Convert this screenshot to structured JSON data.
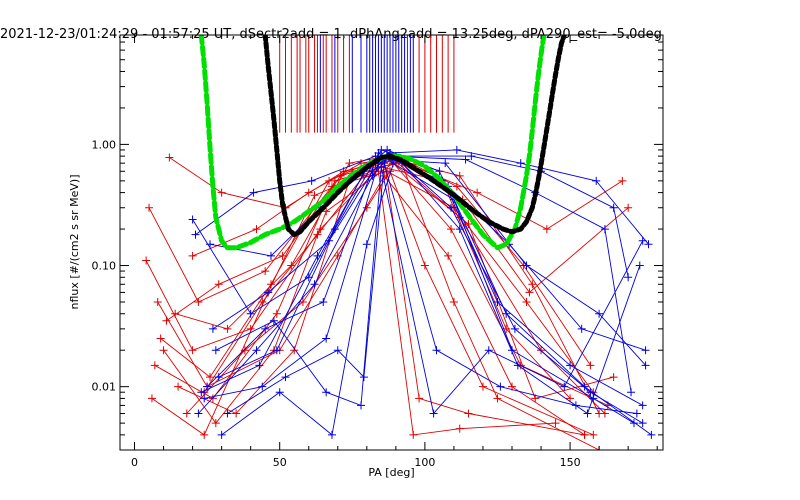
{
  "chart_data": {
    "type": "line",
    "title": "2021-12-23/01:24:29 - 01:57:25 UT, dSectr2add = 1, dPhAng2add = 13.25deg, dPA290_est= -5.0deg",
    "xlabel": "PA [deg]",
    "ylabel": "nflux [#/(cm2 s sr MeV)]",
    "xlim": [
      -5,
      182
    ],
    "ylim": [
      0.003,
      8
    ],
    "y_scale": "log",
    "grid": false,
    "x_ticks": [
      0,
      50,
      100,
      150
    ],
    "x_tick_labels": [
      "0",
      "50",
      "100",
      "150"
    ],
    "y_ticks": [
      0.01,
      0.1,
      1.0
    ],
    "y_tick_labels": [
      "0.01",
      "0.10",
      "1.00"
    ],
    "colors": {
      "red": "#e00000",
      "blue": "#0000e0",
      "green": "#00e000",
      "black": "#000000"
    },
    "series": [
      {
        "color": "red",
        "x": [
          5,
          22,
          45,
          68,
          87,
          110,
          135,
          158
        ],
        "y": [
          0.3,
          0.05,
          0.09,
          0.45,
          0.6,
          0.3,
          0.05,
          0.009
        ]
      },
      {
        "color": "red",
        "x": [
          4,
          20,
          40,
          64,
          88,
          112,
          140,
          162
        ],
        "y": [
          0.11,
          0.02,
          0.03,
          0.2,
          0.8,
          0.25,
          0.02,
          0.006
        ]
      },
      {
        "color": "red",
        "x": [
          8,
          25,
          50,
          70,
          86,
          108,
          130,
          155
        ],
        "y": [
          0.05,
          0.01,
          0.02,
          0.12,
          0.55,
          0.12,
          0.01,
          0.004
        ]
      },
      {
        "color": "red",
        "x": [
          10,
          28,
          48,
          66,
          89,
          115,
          138,
          165
        ],
        "y": [
          0.02,
          0.005,
          0.02,
          0.28,
          0.7,
          0.22,
          0.008,
          0.012
        ]
      },
      {
        "color": "red",
        "x": [
          12,
          30,
          52,
          72,
          90,
          118,
          142,
          168
        ],
        "y": [
          0.78,
          0.4,
          0.3,
          0.6,
          0.75,
          0.4,
          0.2,
          0.5
        ]
      },
      {
        "color": "red",
        "x": [
          6,
          24,
          46,
          62,
          85,
          106,
          128,
          150
        ],
        "y": [
          0.008,
          0.004,
          0.06,
          0.38,
          0.65,
          0.5,
          0.03,
          0.008
        ]
      },
      {
        "color": "red",
        "x": [
          15,
          35,
          55,
          75,
          92,
          110,
          125,
          160
        ],
        "y": [
          0.01,
          0.006,
          0.02,
          0.6,
          0.7,
          0.05,
          0.008,
          0.003
        ]
      },
      {
        "color": "red",
        "x": [
          18,
          38,
          58,
          80,
          88,
          100,
          120,
          158
        ],
        "y": [
          0.006,
          0.02,
          0.05,
          0.3,
          0.6,
          0.1,
          0.01,
          0.004
        ]
      },
      {
        "color": "red",
        "x": [
          7,
          27,
          49,
          69,
          91,
          113,
          136,
          170
        ],
        "y": [
          0.015,
          0.008,
          0.04,
          0.5,
          0.72,
          0.35,
          0.06,
          0.3
        ]
      },
      {
        "color": "red",
        "x": [
          14,
          32,
          54,
          74,
          87,
          109,
          133,
          163
        ],
        "y": [
          0.04,
          0.03,
          0.1,
          0.7,
          0.8,
          0.2,
          0.015,
          0.007
        ]
      },
      {
        "color": "red",
        "x": [
          20,
          42,
          60,
          78,
          86,
          98,
          115,
          155
        ],
        "y": [
          0.12,
          0.2,
          0.4,
          0.7,
          0.75,
          0.008,
          0.006,
          0.004
        ]
      },
      {
        "color": "red",
        "x": [
          24,
          44,
          63,
          79,
          84,
          96,
          112,
          145
        ],
        "y": [
          0.009,
          0.05,
          0.18,
          0.55,
          0.6,
          0.004,
          0.0045,
          0.005
        ]
      },
      {
        "color": "red",
        "x": [
          9,
          26,
          47,
          67,
          88,
          111,
          134,
          157
        ],
        "y": [
          0.025,
          0.012,
          0.07,
          0.5,
          0.85,
          0.45,
          0.1,
          0.015
        ]
      },
      {
        "color": "red",
        "x": [
          11,
          29,
          51,
          71,
          90,
          112,
          137,
          160
        ],
        "y": [
          0.035,
          0.07,
          0.12,
          0.55,
          0.75,
          0.55,
          0.07,
          0.006
        ]
      },
      {
        "color": "blue",
        "x": [
          20,
          40,
          60,
          80,
          87,
          105,
          125,
          150,
          175
        ],
        "y": [
          0.24,
          0.04,
          0.08,
          0.65,
          0.9,
          0.6,
          0.05,
          0.015,
          0.007
        ]
      },
      {
        "color": "blue",
        "x": [
          22,
          42,
          62,
          82,
          88,
          108,
          128,
          155,
          178
        ],
        "y": [
          0.006,
          0.02,
          0.07,
          0.55,
          0.8,
          0.45,
          0.04,
          0.01,
          0.004
        ]
      },
      {
        "color": "blue",
        "x": [
          25,
          45,
          65,
          84,
          89,
          110,
          130,
          158,
          172
        ],
        "y": [
          0.01,
          0.03,
          0.05,
          0.85,
          0.7,
          0.35,
          0.02,
          0.008,
          0.005
        ]
      },
      {
        "color": "blue",
        "x": [
          26,
          47,
          64,
          83,
          86,
          107,
          135,
          160,
          176
        ],
        "y": [
          0.15,
          0.12,
          0.3,
          0.7,
          0.75,
          0.7,
          0.1,
          0.04,
          0.015
        ]
      },
      {
        "color": "blue",
        "x": [
          28,
          48,
          66,
          78,
          85,
          103,
          122,
          148,
          175
        ],
        "y": [
          0.02,
          0.035,
          0.009,
          0.007,
          0.65,
          0.006,
          0.02,
          0.01,
          0.16
        ]
      },
      {
        "color": "blue",
        "x": [
          30,
          50,
          68,
          80,
          90,
          112,
          132,
          156,
          174
        ],
        "y": [
          0.004,
          0.009,
          0.004,
          0.15,
          0.8,
          0.2,
          0.015,
          0.006,
          0.1
        ]
      },
      {
        "color": "blue",
        "x": [
          23,
          43,
          63,
          81,
          88,
          111,
          133,
          159,
          177
        ],
        "y": [
          0.009,
          0.015,
          0.12,
          0.7,
          0.85,
          0.9,
          0.7,
          0.5,
          0.15
        ]
      },
      {
        "color": "blue",
        "x": [
          27,
          46,
          67,
          82,
          87,
          114,
          138,
          162,
          171
        ],
        "y": [
          0.03,
          0.06,
          0.16,
          0.6,
          0.8,
          0.75,
          0.4,
          0.2,
          0.009
        ]
      },
      {
        "color": "blue",
        "x": [
          32,
          52,
          70,
          79,
          86,
          104,
          126,
          152,
          173
        ],
        "y": [
          0.006,
          0.012,
          0.02,
          0.012,
          0.7,
          0.02,
          0.01,
          0.007,
          0.006
        ]
      },
      {
        "color": "blue",
        "x": [
          21,
          41,
          61,
          83,
          89,
          106,
          129,
          154,
          176
        ],
        "y": [
          0.18,
          0.4,
          0.5,
          0.8,
          0.75,
          0.5,
          0.15,
          0.03,
          0.02
        ]
      },
      {
        "color": "blue",
        "x": [
          24,
          44,
          66,
          84,
          90,
          116,
          140,
          165,
          170
        ],
        "y": [
          0.008,
          0.01,
          0.025,
          0.7,
          0.8,
          0.8,
          0.6,
          0.3,
          0.08
        ]
      },
      {
        "color": "blue",
        "x": [
          29,
          49,
          69,
          85,
          88,
          109,
          131,
          157,
          175
        ],
        "y": [
          0.012,
          0.02,
          0.2,
          0.9,
          0.85,
          0.3,
          0.03,
          0.009,
          0.005
        ]
      }
    ],
    "model_curves": [
      {
        "name": "",
        "color": "green",
        "dash": "8,4",
        "x": [
          23,
          24,
          25,
          26,
          27,
          28,
          30,
          32,
          35,
          40,
          45,
          50,
          55,
          60,
          65,
          70,
          75,
          80,
          85,
          88,
          91,
          95,
          100,
          105,
          110,
          115,
          120,
          125,
          128,
          131,
          133,
          135,
          136,
          137,
          138,
          139,
          140,
          141
        ],
        "y": [
          8,
          4.6,
          2.2,
          0.95,
          0.45,
          0.25,
          0.16,
          0.14,
          0.14,
          0.155,
          0.18,
          0.2,
          0.23,
          0.28,
          0.34,
          0.45,
          0.56,
          0.68,
          0.77,
          0.8,
          0.8,
          0.76,
          0.66,
          0.52,
          0.38,
          0.26,
          0.18,
          0.14,
          0.15,
          0.2,
          0.3,
          0.55,
          0.8,
          1.3,
          2.2,
          3.6,
          5.5,
          8
        ]
      },
      {
        "name": "",
        "color": "black",
        "dash": "5,3",
        "x": [
          45,
          46,
          47,
          48,
          49,
          50,
          51,
          52,
          53,
          55,
          57,
          60,
          65,
          70,
          75,
          80,
          85,
          88,
          92,
          97,
          102,
          107,
          112,
          117,
          122,
          127,
          130,
          133,
          135,
          137,
          138,
          139,
          140,
          141,
          142,
          143,
          144,
          145,
          146,
          147,
          148
        ],
        "y": [
          8,
          4.5,
          2.7,
          1.6,
          0.9,
          0.5,
          0.32,
          0.25,
          0.2,
          0.18,
          0.19,
          0.23,
          0.3,
          0.4,
          0.52,
          0.65,
          0.78,
          0.8,
          0.74,
          0.62,
          0.52,
          0.43,
          0.35,
          0.28,
          0.23,
          0.2,
          0.19,
          0.2,
          0.23,
          0.3,
          0.38,
          0.5,
          0.68,
          0.95,
          1.35,
          1.9,
          2.7,
          3.8,
          5.2,
          6.8,
          8
        ]
      }
    ],
    "tick_marks": {
      "y_from": 1.25,
      "y_to": 8,
      "red_x": [
        50,
        52,
        54,
        56,
        57,
        59,
        60,
        62,
        63,
        65,
        66,
        68,
        70,
        72,
        74,
        94,
        98,
        100,
        102,
        104,
        106,
        108,
        110
      ],
      "blue_x": [
        64,
        69,
        75,
        78,
        80,
        81,
        82,
        83,
        84,
        85,
        86,
        87,
        88,
        89,
        90,
        91,
        92,
        93,
        95,
        96
      ]
    }
  }
}
